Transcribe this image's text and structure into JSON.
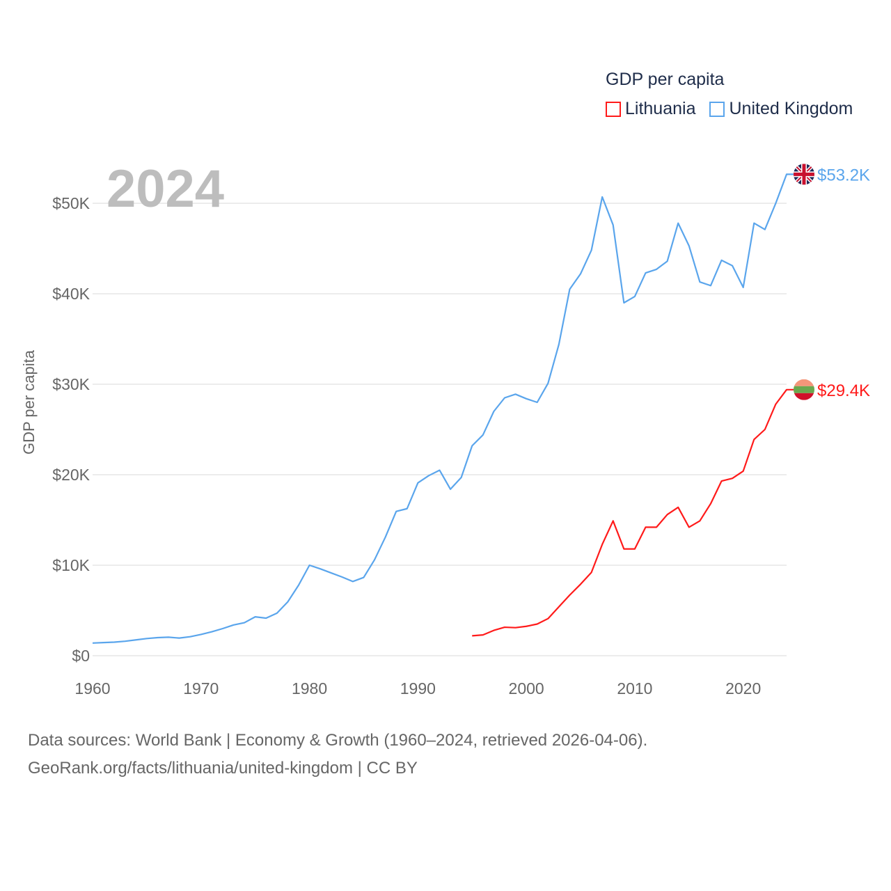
{
  "chart_data": {
    "type": "line",
    "title": "GDP per capita",
    "highlight_year": "2024",
    "xlabel": "",
    "ylabel": "GDP per capita",
    "xlim": [
      1960,
      2024
    ],
    "ylim": [
      0,
      53200
    ],
    "x_ticks": [
      1960,
      1970,
      1980,
      1990,
      2000,
      2010,
      2020
    ],
    "x_tick_labels": [
      "1960",
      "1970",
      "1980",
      "1990",
      "2000",
      "2010",
      "2020"
    ],
    "y_ticks": [
      0,
      10000,
      20000,
      30000,
      40000,
      50000
    ],
    "y_tick_labels": [
      "$0",
      "$10K",
      "$20K",
      "$30K",
      "$40K",
      "$50K"
    ],
    "grid": true,
    "legend_placement": "top-right",
    "series": [
      {
        "name": "Lithuania",
        "color": "#ff1a1a",
        "end_label": "$29.4K",
        "flag": "lithuania-flag",
        "start_year": 1995,
        "values": [
          2.2,
          2.3,
          2.8,
          3.15,
          3.1,
          3.25,
          3.5,
          4.1,
          5.4,
          6.7,
          7.9,
          9.2,
          12.3,
          14.9,
          11.8,
          11.8,
          14.2,
          14.2,
          15.6,
          16.4,
          14.2,
          14.9,
          16.8,
          19.3,
          19.6,
          20.4,
          23.9,
          25.0,
          27.8,
          29.4
        ]
      },
      {
        "name": "United Kingdom",
        "color": "#5aa5ec",
        "end_label": "$53.2K",
        "flag": "uk-flag",
        "start_year": 1960,
        "values": [
          1.4,
          1.45,
          1.5,
          1.6,
          1.75,
          1.9,
          2.0,
          2.05,
          1.95,
          2.1,
          2.35,
          2.65,
          3.0,
          3.4,
          3.65,
          4.3,
          4.15,
          4.7,
          5.95,
          7.8,
          10.0,
          9.6,
          9.15,
          8.7,
          8.2,
          8.65,
          10.6,
          13.1,
          15.95,
          16.25,
          19.1,
          19.9,
          20.5,
          18.4,
          19.7,
          23.2,
          24.4,
          27.0,
          28.5,
          28.9,
          28.4,
          28.0,
          30.1,
          34.4,
          40.5,
          42.2,
          44.8,
          50.7,
          47.6,
          39.0,
          39.7,
          42.3,
          42.7,
          43.6,
          47.8,
          45.3,
          41.3,
          40.9,
          43.7,
          43.1,
          40.7,
          47.8,
          47.1,
          50.0,
          53.2
        ]
      }
    ],
    "value_unit": "thousand USD"
  },
  "footer": {
    "line1": "Data sources: World Bank | Economy & Growth (1960–2024, retrieved 2026-04-06).",
    "line2": "GeoRank.org/facts/lithuania/united-kingdom | CC BY"
  }
}
